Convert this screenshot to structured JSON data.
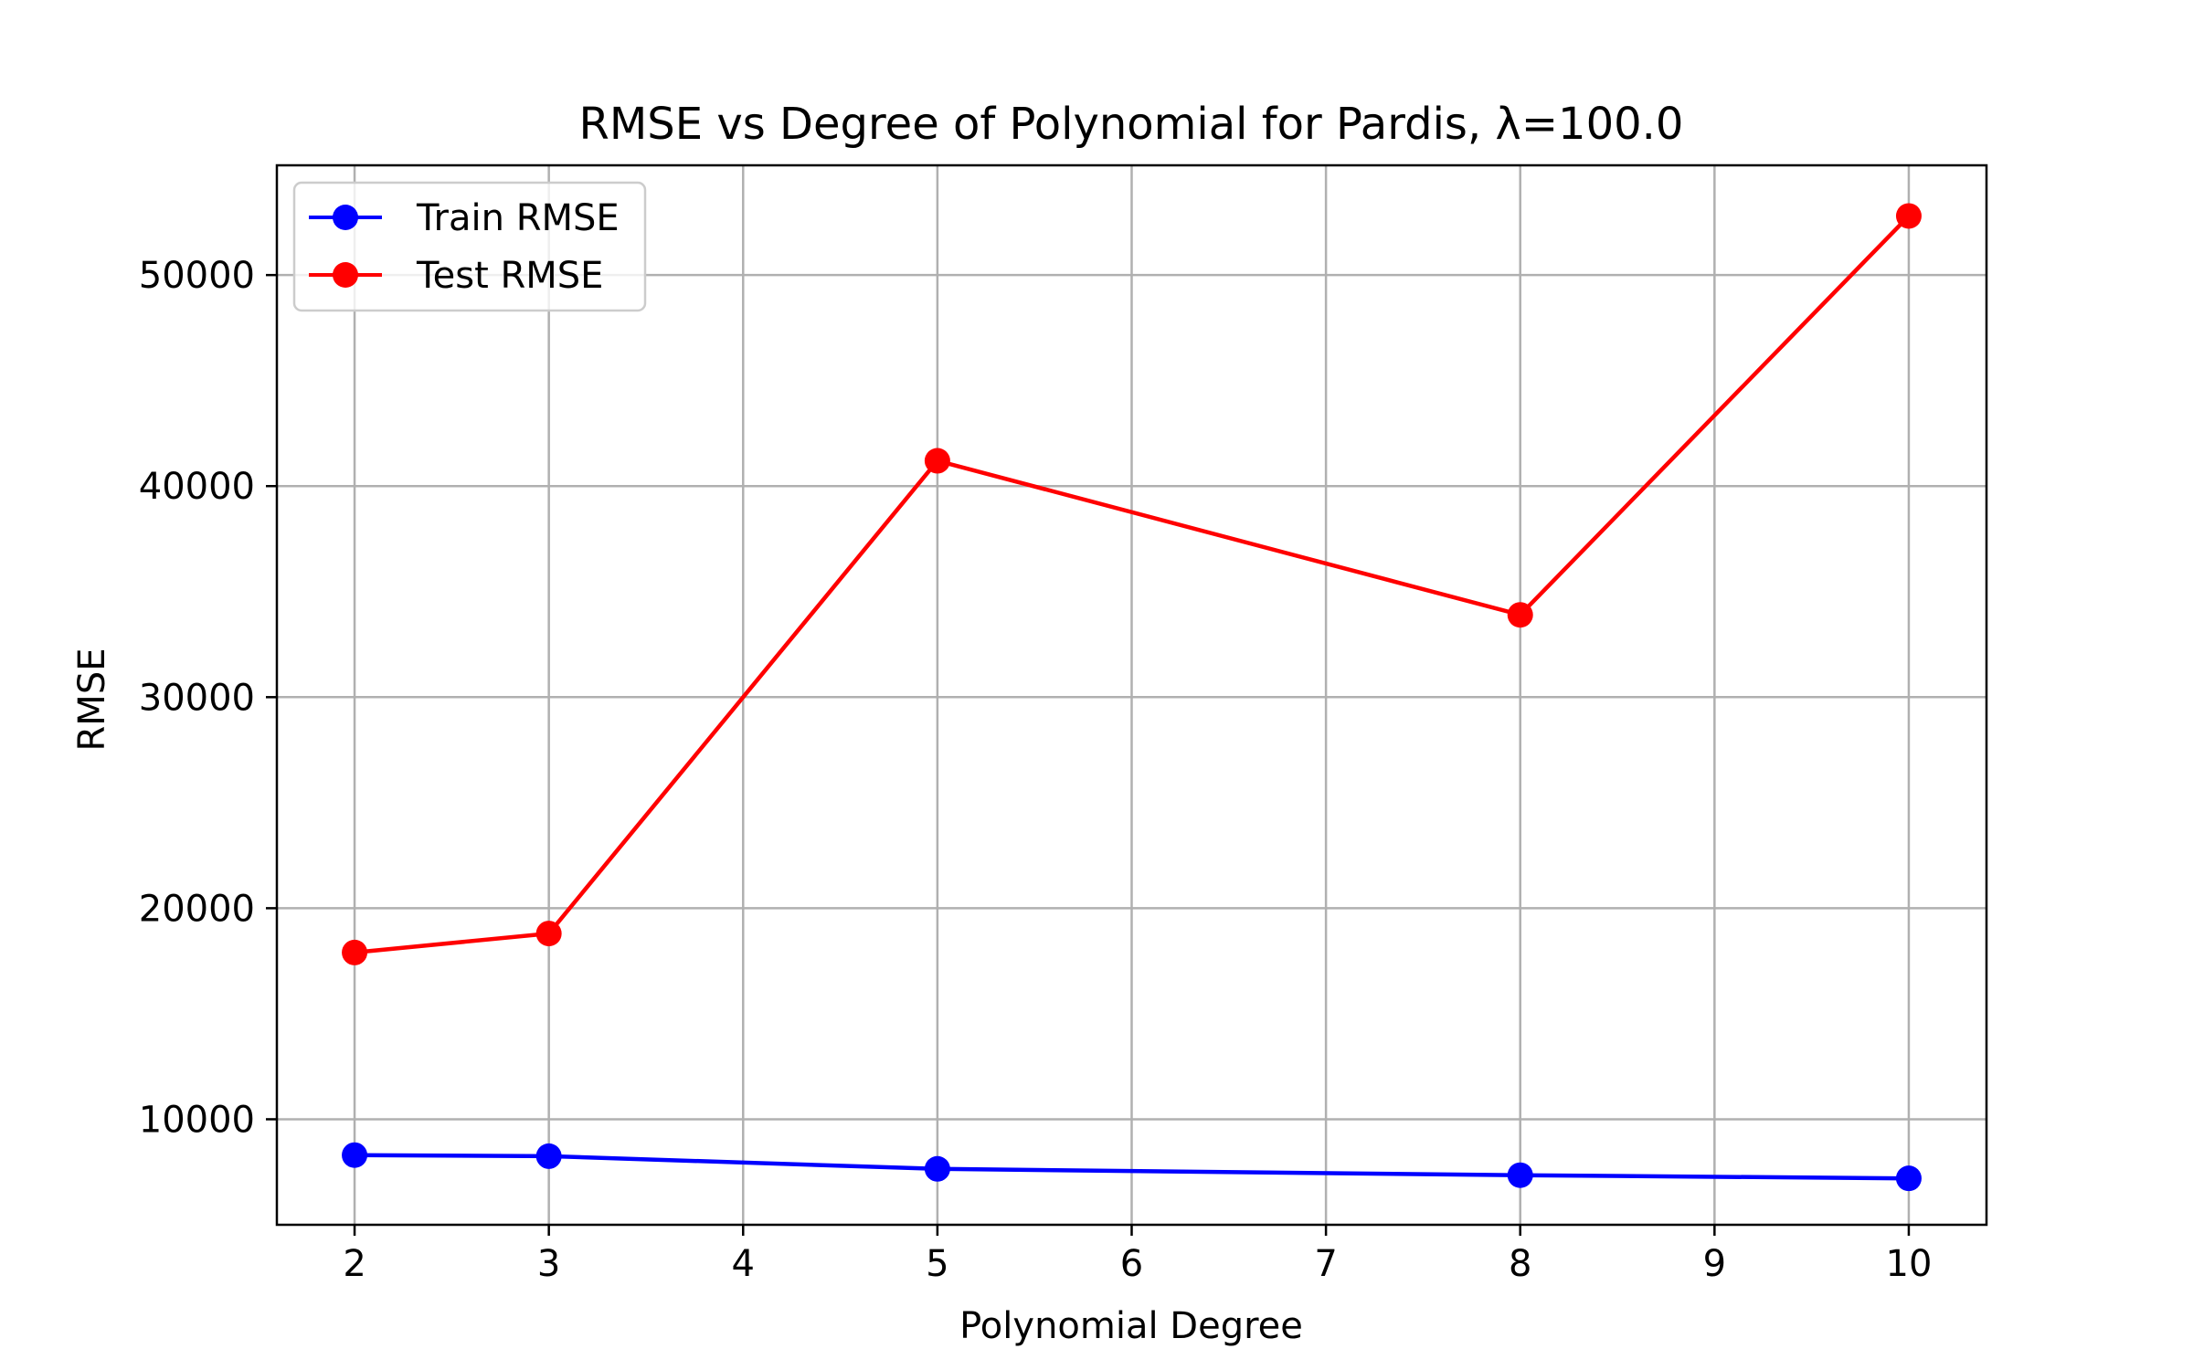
{
  "chart_data": {
    "type": "line",
    "title": "RMSE vs Degree of Polynomial for Pardis, λ=100.0",
    "xlabel": "Polynomial Degree",
    "ylabel": "RMSE",
    "xlim": [
      1.6,
      10.4
    ],
    "ylim": [
      5000,
      55200
    ],
    "xticks": [
      2,
      3,
      4,
      5,
      6,
      7,
      8,
      9,
      10
    ],
    "yticks": [
      10000,
      20000,
      30000,
      40000,
      50000
    ],
    "grid": true,
    "legend_position": "upper-left",
    "x": [
      2,
      3,
      5,
      8,
      10
    ],
    "series": [
      {
        "name": "Train RMSE",
        "color": "#0000ff",
        "marker": "circle",
        "values": [
          8300,
          8250,
          7650,
          7350,
          7200
        ]
      },
      {
        "name": "Test RMSE",
        "color": "#ff0000",
        "marker": "circle",
        "values": [
          17900,
          18800,
          41200,
          33900,
          52800
        ]
      }
    ]
  }
}
